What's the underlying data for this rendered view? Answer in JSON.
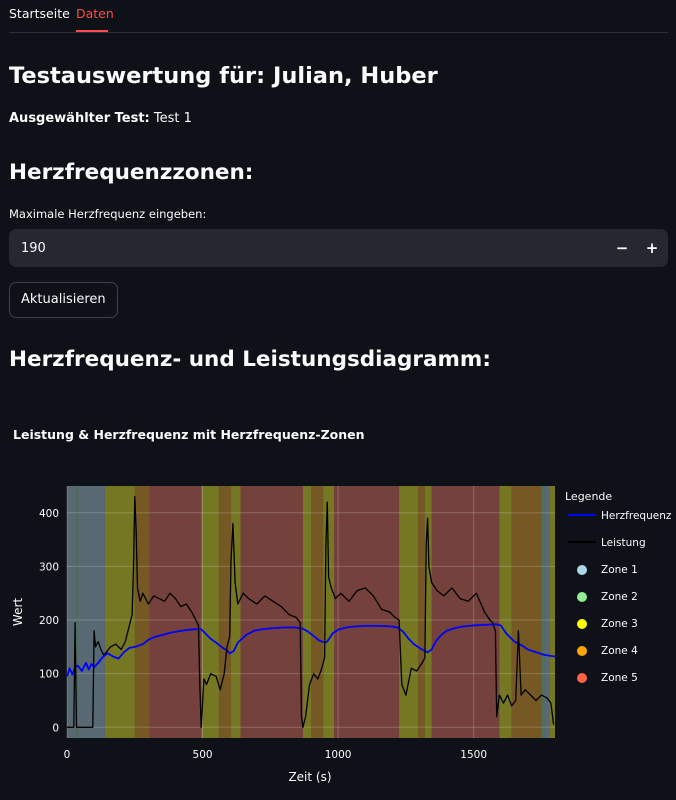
{
  "tabs": [
    "Startseite",
    "Daten"
  ],
  "title": "Testauswertung für: Julian, Huber",
  "selected_test": {
    "label": "Ausgewählter Test:",
    "value": "Test 1"
  },
  "hr_section": "Herzfrequenzzonen:",
  "max_hr": {
    "label": "Maximale Herzfrequenz eingeben:",
    "value": "190",
    "minus": "−",
    "plus": "+"
  },
  "update_button": "Aktualisieren",
  "diagram_section": "Herzfrequenz- und Leistungsdiagramm:",
  "colors": {
    "zone1": "#add8e6",
    "zone2": "#90ee90",
    "zone3": "#ffff00",
    "zone4": "#ffa500",
    "zone5": "#ff6347",
    "heart_rate": "#0000ff",
    "power": "#000000",
    "plot_bg": "#2b2f36"
  },
  "chart_data": {
    "type": "line",
    "title": "Leistung & Herzfrequenz mit Herzfrequenz-Zonen",
    "xlabel": "Zeit (s)",
    "ylabel": "Wert",
    "xlim": [
      0,
      1800
    ],
    "ylim": [
      -20,
      450
    ],
    "xticks": [
      0,
      500,
      1000,
      1500
    ],
    "yticks": [
      0,
      100,
      200,
      300,
      400
    ],
    "grid": true,
    "legend": {
      "title": "Legende",
      "placement": "right",
      "entries": [
        "Herzfrequenz",
        "Leistung",
        "Zone 1",
        "Zone 2",
        "Zone 3",
        "Zone 4",
        "Zone 5"
      ]
    },
    "zones": [
      {
        "zone": 1,
        "from": 0,
        "to": 30
      },
      {
        "zone": 2,
        "from": 30,
        "to": 40
      },
      {
        "zone": 1,
        "from": 40,
        "to": 140
      },
      {
        "zone": 3,
        "from": 140,
        "to": 250
      },
      {
        "zone": 4,
        "from": 250,
        "to": 305
      },
      {
        "zone": 5,
        "from": 305,
        "to": 495
      },
      {
        "zone": 3,
        "from": 495,
        "to": 560
      },
      {
        "zone": 4,
        "from": 560,
        "to": 605
      },
      {
        "zone": 3,
        "from": 605,
        "to": 640
      },
      {
        "zone": 5,
        "from": 640,
        "to": 870
      },
      {
        "zone": 3,
        "from": 870,
        "to": 900
      },
      {
        "zone": 4,
        "from": 900,
        "to": 945
      },
      {
        "zone": 3,
        "from": 945,
        "to": 985
      },
      {
        "zone": 5,
        "from": 985,
        "to": 1225
      },
      {
        "zone": 3,
        "from": 1225,
        "to": 1295
      },
      {
        "zone": 4,
        "from": 1295,
        "to": 1320
      },
      {
        "zone": 3,
        "from": 1320,
        "to": 1345
      },
      {
        "zone": 5,
        "from": 1345,
        "to": 1595
      },
      {
        "zone": 3,
        "from": 1595,
        "to": 1640
      },
      {
        "zone": 4,
        "from": 1640,
        "to": 1750
      },
      {
        "zone": 2,
        "from": 1750,
        "to": 1760
      },
      {
        "zone": 1,
        "from": 1760,
        "to": 1780
      },
      {
        "zone": 3,
        "from": 1780,
        "to": 1800
      }
    ],
    "series": [
      {
        "name": "Herzfrequenz",
        "x": [
          0,
          10,
          20,
          30,
          40,
          55,
          70,
          80,
          90,
          100,
          115,
          130,
          150,
          170,
          190,
          210,
          230,
          250,
          280,
          300,
          320,
          350,
          380,
          420,
          450,
          480,
          495,
          510,
          530,
          550,
          570,
          590,
          600,
          615,
          630,
          660,
          690,
          720,
          760,
          800,
          840,
          870,
          890,
          910,
          930,
          950,
          960,
          980,
          1000,
          1030,
          1060,
          1100,
          1150,
          1200,
          1220,
          1240,
          1260,
          1280,
          1300,
          1320,
          1330,
          1345,
          1360,
          1380,
          1400,
          1430,
          1460,
          1500,
          1540,
          1580,
          1600,
          1620,
          1650,
          1680,
          1700,
          1730,
          1760,
          1800
        ],
        "values": [
          95,
          110,
          98,
          112,
          115,
          105,
          120,
          108,
          118,
          112,
          120,
          130,
          138,
          132,
          128,
          140,
          148,
          150,
          155,
          163,
          168,
          172,
          176,
          180,
          182,
          183,
          183,
          175,
          165,
          158,
          150,
          143,
          138,
          142,
          158,
          172,
          180,
          183,
          185,
          186,
          186,
          184,
          178,
          170,
          162,
          158,
          160,
          175,
          182,
          186,
          188,
          189,
          189,
          188,
          186,
          178,
          165,
          155,
          148,
          142,
          140,
          145,
          160,
          172,
          180,
          185,
          188,
          190,
          191,
          192,
          190,
          175,
          160,
          152,
          145,
          140,
          135,
          132
        ]
      },
      {
        "name": "Leistung",
        "x": [
          0,
          15,
          25,
          30,
          35,
          45,
          60,
          80,
          95,
          100,
          105,
          115,
          125,
          135,
          145,
          160,
          180,
          200,
          215,
          230,
          240,
          245,
          250,
          255,
          260,
          270,
          280,
          300,
          320,
          340,
          360,
          380,
          400,
          420,
          440,
          460,
          475,
          485,
          490,
          495,
          505,
          515,
          530,
          550,
          565,
          580,
          590,
          600,
          605,
          612,
          620,
          630,
          650,
          670,
          700,
          730,
          760,
          790,
          820,
          845,
          860,
          865,
          870,
          880,
          895,
          910,
          925,
          940,
          950,
          955,
          960,
          965,
          975,
          990,
          1010,
          1040,
          1070,
          1100,
          1130,
          1160,
          1190,
          1210,
          1225,
          1235,
          1250,
          1270,
          1290,
          1310,
          1320,
          1325,
          1330,
          1335,
          1345,
          1365,
          1390,
          1420,
          1450,
          1480,
          1510,
          1540,
          1560,
          1570,
          1580,
          1585,
          1595,
          1610,
          1625,
          1640,
          1655,
          1665,
          1675,
          1690,
          1710,
          1730,
          1750,
          1770,
          1785,
          1795
        ],
        "values": [
          0,
          0,
          0,
          195,
          0,
          0,
          0,
          0,
          0,
          180,
          150,
          160,
          145,
          135,
          140,
          150,
          155,
          145,
          160,
          190,
          210,
          290,
          430,
          370,
          260,
          235,
          250,
          230,
          245,
          240,
          235,
          250,
          240,
          225,
          230,
          215,
          200,
          190,
          80,
          0,
          90,
          80,
          100,
          95,
          70,
          100,
          150,
          170,
          310,
          380,
          270,
          230,
          250,
          240,
          230,
          245,
          235,
          225,
          210,
          205,
          195,
          20,
          0,
          20,
          80,
          100,
          90,
          110,
          130,
          340,
          420,
          280,
          260,
          240,
          250,
          235,
          255,
          260,
          245,
          220,
          215,
          205,
          200,
          80,
          60,
          110,
          105,
          120,
          130,
          340,
          390,
          300,
          270,
          255,
          245,
          260,
          240,
          235,
          250,
          215,
          200,
          195,
          180,
          20,
          60,
          45,
          60,
          40,
          50,
          180,
          60,
          70,
          60,
          50,
          60,
          55,
          45,
          5
        ]
      }
    ]
  }
}
